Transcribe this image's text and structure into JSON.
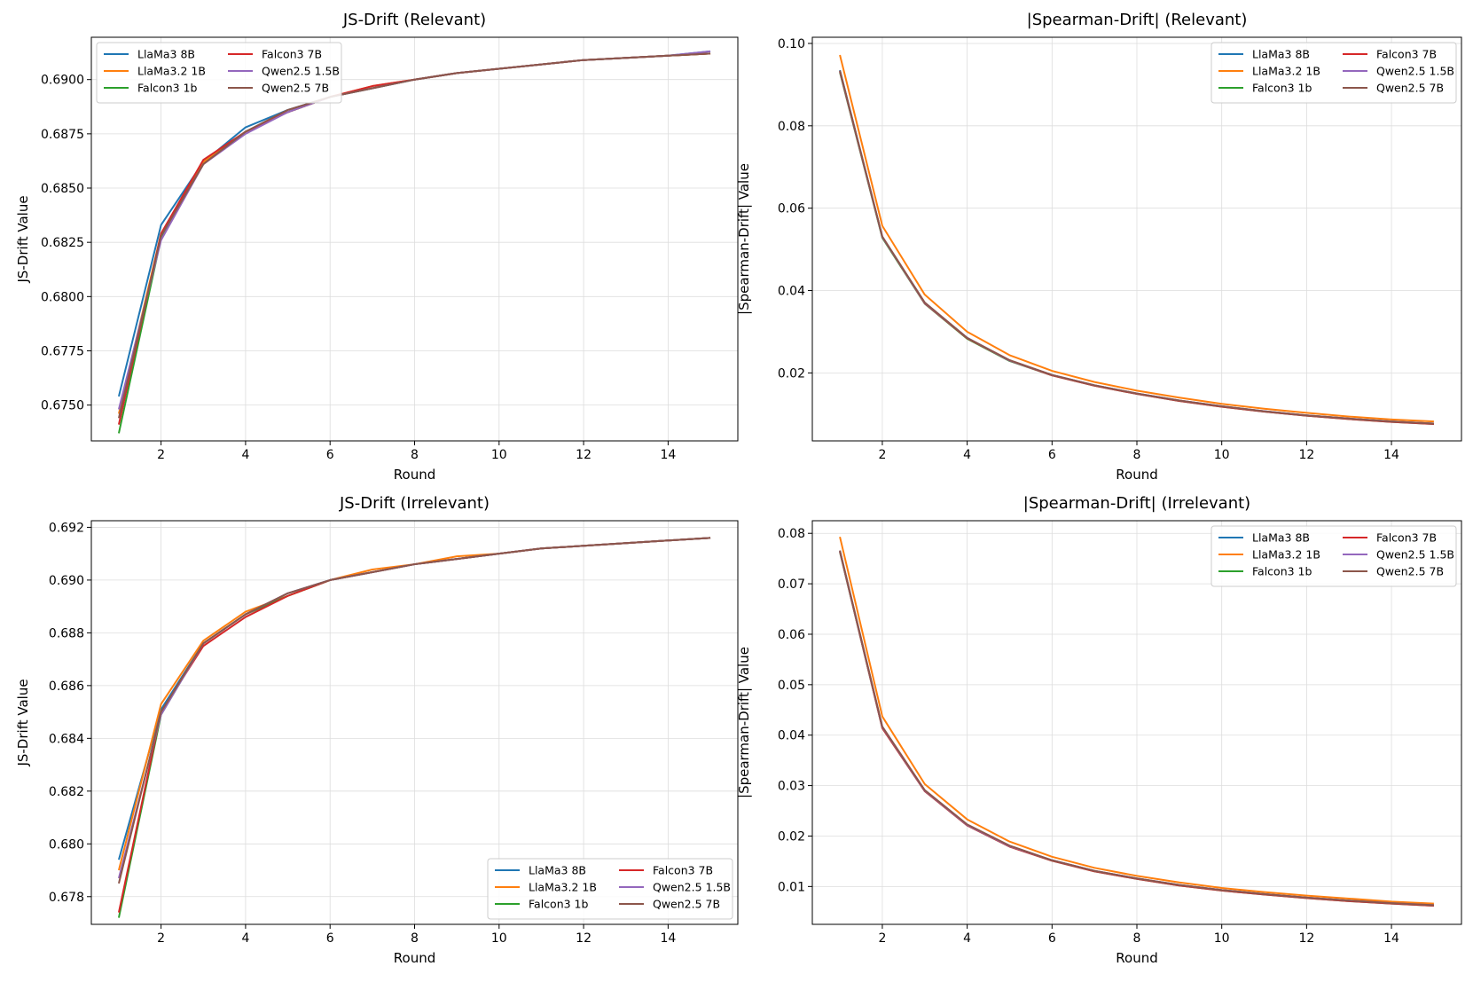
{
  "chart_data": [
    {
      "type": "line",
      "title": "JS-Drift (Relevant)",
      "xlabel": "Round",
      "ylabel": "JS-Drift Value",
      "xlim": [
        0.35,
        15.65
      ],
      "ylim": [
        0.67335,
        0.69195
      ],
      "xticks": [
        2,
        4,
        6,
        8,
        10,
        12,
        14
      ],
      "yticks": [
        0.675,
        0.6775,
        0.68,
        0.6825,
        0.685,
        0.6875,
        0.69
      ],
      "ytick_labels": [
        "0.6750",
        "0.6775",
        "0.6800",
        "0.6825",
        "0.6850",
        "0.6875",
        "0.6900"
      ],
      "grid": true,
      "legend_position": "top-left",
      "x": [
        1,
        2,
        3,
        4,
        5,
        6,
        7,
        8,
        9,
        10,
        11,
        12,
        13,
        14,
        15
      ],
      "series": [
        {
          "name": "LlaMa3 8B",
          "color": "#1f77b4",
          "values": [
            0.6754,
            0.6833,
            0.6862,
            0.6878,
            0.6886,
            0.6892,
            0.6896,
            0.69,
            0.6903,
            0.6905,
            0.6907,
            0.6909,
            0.691,
            0.6911,
            0.6913
          ]
        },
        {
          "name": "LlaMa3.2 1B",
          "color": "#ff7f0e",
          "values": [
            0.6746,
            0.6829,
            0.6862,
            0.6876,
            0.6885,
            0.6892,
            0.6897,
            0.69,
            0.6903,
            0.6905,
            0.6907,
            0.6909,
            0.691,
            0.6911,
            0.6912
          ]
        },
        {
          "name": "Falcon3 1b",
          "color": "#2ca02c",
          "values": [
            0.6737,
            0.6827,
            0.6861,
            0.6876,
            0.6885,
            0.6892,
            0.6896,
            0.69,
            0.6903,
            0.6905,
            0.6907,
            0.6909,
            0.691,
            0.6911,
            0.6912
          ]
        },
        {
          "name": "Falcon3 7B",
          "color": "#d62728",
          "values": [
            0.6741,
            0.6829,
            0.6863,
            0.6876,
            0.6885,
            0.6892,
            0.6897,
            0.69,
            0.6903,
            0.6905,
            0.6907,
            0.6909,
            0.691,
            0.6911,
            0.6912
          ]
        },
        {
          "name": "Qwen2.5 1.5B",
          "color": "#9467bd",
          "values": [
            0.6748,
            0.6826,
            0.6861,
            0.6875,
            0.6885,
            0.6892,
            0.6896,
            0.69,
            0.6903,
            0.6905,
            0.6907,
            0.6909,
            0.691,
            0.6911,
            0.6913
          ]
        },
        {
          "name": "Qwen2.5 7B",
          "color": "#8c564b",
          "values": [
            0.6744,
            0.6828,
            0.6861,
            0.6876,
            0.6886,
            0.6892,
            0.6896,
            0.69,
            0.6903,
            0.6905,
            0.6907,
            0.6909,
            0.691,
            0.6911,
            0.6912
          ]
        }
      ]
    },
    {
      "type": "line",
      "title": "|Spearman-Drift| (Relevant)",
      "xlabel": "Round",
      "ylabel": "|Spearman-Drift| Value",
      "xlim": [
        0.35,
        15.65
      ],
      "ylim": [
        0.0035,
        0.1015
      ],
      "xticks": [
        2,
        4,
        6,
        8,
        10,
        12,
        14
      ],
      "yticks": [
        0.02,
        0.04,
        0.06,
        0.08,
        0.1
      ],
      "ytick_labels": [
        "0.02",
        "0.04",
        "0.06",
        "0.08",
        "0.10"
      ],
      "grid": true,
      "legend_position": "top-right",
      "x": [
        1,
        2,
        3,
        4,
        5,
        6,
        7,
        8,
        9,
        10,
        11,
        12,
        13,
        14,
        15
      ],
      "series": [
        {
          "name": "LlaMa3 8B",
          "color": "#1f77b4",
          "values": [
            0.0935,
            0.053,
            0.037,
            0.0285,
            0.023,
            0.0195,
            0.017,
            0.015,
            0.0133,
            0.0119,
            0.0107,
            0.0097,
            0.0089,
            0.0082,
            0.0077
          ]
        },
        {
          "name": "LlaMa3.2 1B",
          "color": "#ff7f0e",
          "values": [
            0.0972,
            0.0557,
            0.039,
            0.03,
            0.0243,
            0.0205,
            0.0178,
            0.0157,
            0.014,
            0.0125,
            0.0113,
            0.0103,
            0.0094,
            0.0087,
            0.0082
          ]
        },
        {
          "name": "Falcon3 1b",
          "color": "#2ca02c",
          "values": [
            0.093,
            0.0528,
            0.0368,
            0.0283,
            0.0229,
            0.0194,
            0.0169,
            0.0149,
            0.0132,
            0.0118,
            0.0106,
            0.0096,
            0.0088,
            0.0081,
            0.0076
          ]
        },
        {
          "name": "Falcon3 7B",
          "color": "#d62728",
          "values": [
            0.0932,
            0.053,
            0.0369,
            0.0284,
            0.023,
            0.0194,
            0.0169,
            0.0149,
            0.0132,
            0.0118,
            0.0106,
            0.0096,
            0.0088,
            0.0081,
            0.0076
          ]
        },
        {
          "name": "Qwen2.5 1.5B",
          "color": "#9467bd",
          "values": [
            0.0933,
            0.053,
            0.037,
            0.0285,
            0.023,
            0.0195,
            0.017,
            0.015,
            0.0133,
            0.0119,
            0.0107,
            0.0097,
            0.0089,
            0.0082,
            0.0077
          ]
        },
        {
          "name": "Qwen2.5 7B",
          "color": "#8c564b",
          "values": [
            0.0934,
            0.0531,
            0.0371,
            0.0285,
            0.0231,
            0.0195,
            0.017,
            0.015,
            0.0133,
            0.0119,
            0.0107,
            0.0097,
            0.0089,
            0.0082,
            0.0077
          ]
        }
      ]
    },
    {
      "type": "line",
      "title": "JS-Drift (Irrelevant)",
      "xlabel": "Round",
      "ylabel": "JS-Drift Value",
      "xlim": [
        0.35,
        15.65
      ],
      "ylim": [
        0.67695,
        0.69225
      ],
      "xticks": [
        2,
        4,
        6,
        8,
        10,
        12,
        14
      ],
      "yticks": [
        0.678,
        0.68,
        0.682,
        0.684,
        0.686,
        0.688,
        0.69,
        0.692
      ],
      "ytick_labels": [
        "0.678",
        "0.680",
        "0.682",
        "0.684",
        "0.686",
        "0.688",
        "0.690",
        "0.692"
      ],
      "grid": true,
      "legend_position": "bottom-right",
      "x": [
        1,
        2,
        3,
        4,
        5,
        6,
        7,
        8,
        9,
        10,
        11,
        12,
        13,
        14,
        15
      ],
      "series": [
        {
          "name": "LlaMa3 8B",
          "color": "#1f77b4",
          "values": [
            0.6794,
            0.6851,
            0.6876,
            0.6887,
            0.6895,
            0.69,
            0.6903,
            0.6906,
            0.6908,
            0.691,
            0.6912,
            0.6913,
            0.6914,
            0.6915,
            0.6916
          ]
        },
        {
          "name": "LlaMa3.2 1B",
          "color": "#ff7f0e",
          "values": [
            0.679,
            0.6853,
            0.6877,
            0.6888,
            0.6894,
            0.69,
            0.6904,
            0.6906,
            0.6909,
            0.691,
            0.6912,
            0.6913,
            0.6914,
            0.6915,
            0.6916
          ]
        },
        {
          "name": "Falcon3 1b",
          "color": "#2ca02c",
          "values": [
            0.6772,
            0.6849,
            0.6876,
            0.6887,
            0.6894,
            0.69,
            0.6903,
            0.6906,
            0.6908,
            0.691,
            0.6912,
            0.6913,
            0.6914,
            0.6915,
            0.6916
          ]
        },
        {
          "name": "Falcon3 7B",
          "color": "#d62728",
          "values": [
            0.6774,
            0.685,
            0.6875,
            0.6886,
            0.6894,
            0.69,
            0.6903,
            0.6906,
            0.6908,
            0.691,
            0.6912,
            0.6913,
            0.6914,
            0.6915,
            0.6916
          ]
        },
        {
          "name": "Qwen2.5 1.5B",
          "color": "#9467bd",
          "values": [
            0.6787,
            0.6849,
            0.6876,
            0.6887,
            0.6895,
            0.69,
            0.6903,
            0.6906,
            0.6908,
            0.691,
            0.6912,
            0.6913,
            0.6914,
            0.6915,
            0.6916
          ]
        },
        {
          "name": "Qwen2.5 7B",
          "color": "#8c564b",
          "values": [
            0.6785,
            0.685,
            0.6876,
            0.6887,
            0.6895,
            0.69,
            0.6903,
            0.6906,
            0.6908,
            0.691,
            0.6912,
            0.6913,
            0.6914,
            0.6915,
            0.6916
          ]
        }
      ]
    },
    {
      "type": "line",
      "title": "|Spearman-Drift| (Irrelevant)",
      "xlabel": "Round",
      "ylabel": "|Spearman-Drift| Value",
      "xlim": [
        0.35,
        15.65
      ],
      "ylim": [
        0.0025,
        0.0825
      ],
      "xticks": [
        2,
        4,
        6,
        8,
        10,
        12,
        14
      ],
      "yticks": [
        0.01,
        0.02,
        0.03,
        0.04,
        0.05,
        0.06,
        0.07,
        0.08
      ],
      "ytick_labels": [
        "0.01",
        "0.02",
        "0.03",
        "0.04",
        "0.05",
        "0.06",
        "0.07",
        "0.08"
      ],
      "grid": true,
      "legend_position": "top-right",
      "x": [
        1,
        2,
        3,
        4,
        5,
        6,
        7,
        8,
        9,
        10,
        11,
        12,
        13,
        14,
        15
      ],
      "series": [
        {
          "name": "LlaMa3 8B",
          "color": "#1f77b4",
          "values": [
            0.0765,
            0.0415,
            0.029,
            0.0222,
            0.018,
            0.0152,
            0.0131,
            0.0116,
            0.0103,
            0.0093,
            0.0085,
            0.0078,
            0.0072,
            0.0067,
            0.0063
          ]
        },
        {
          "name": "LlaMa3.2 1B",
          "color": "#ff7f0e",
          "values": [
            0.0793,
            0.0437,
            0.0303,
            0.0233,
            0.0189,
            0.0159,
            0.0137,
            0.0121,
            0.0108,
            0.0097,
            0.0089,
            0.0082,
            0.0076,
            0.007,
            0.0066
          ]
        },
        {
          "name": "Falcon3 1b",
          "color": "#2ca02c",
          "values": [
            0.0763,
            0.0414,
            0.0289,
            0.0221,
            0.0179,
            0.0151,
            0.013,
            0.0115,
            0.0102,
            0.0092,
            0.0084,
            0.0077,
            0.0071,
            0.0066,
            0.0062
          ]
        },
        {
          "name": "Falcon3 7B",
          "color": "#d62728",
          "values": [
            0.0764,
            0.0414,
            0.0289,
            0.0221,
            0.0179,
            0.0151,
            0.013,
            0.0115,
            0.0102,
            0.0092,
            0.0084,
            0.0077,
            0.0071,
            0.0066,
            0.0062
          ]
        },
        {
          "name": "Qwen2.5 1.5B",
          "color": "#9467bd",
          "values": [
            0.0765,
            0.0416,
            0.029,
            0.0222,
            0.018,
            0.0152,
            0.0131,
            0.0116,
            0.0103,
            0.0093,
            0.0085,
            0.0078,
            0.0072,
            0.0067,
            0.0063
          ]
        },
        {
          "name": "Qwen2.5 7B",
          "color": "#8c564b",
          "values": [
            0.0766,
            0.0417,
            0.0291,
            0.0223,
            0.0181,
            0.0152,
            0.0131,
            0.0116,
            0.0103,
            0.0093,
            0.0085,
            0.0078,
            0.0072,
            0.0067,
            0.0063
          ]
        }
      ]
    }
  ]
}
